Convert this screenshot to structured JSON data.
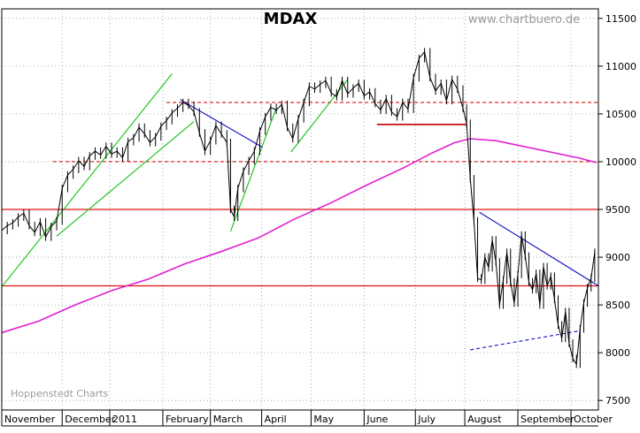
{
  "chart_data": {
    "type": "line",
    "title": "MDAX",
    "watermark": "www.chartbuero.de",
    "source": "Hoppenstedt Charts",
    "xlabel": "",
    "ylabel": "",
    "ylim": [
      7400,
      11600
    ],
    "y_ticks": [
      7500,
      8000,
      8500,
      9000,
      9500,
      10000,
      10500,
      11000,
      11500
    ],
    "x_ticks": [
      "November",
      "December",
      "2011",
      "February",
      "March",
      "April",
      "May",
      "June",
      "July",
      "August",
      "September",
      "October"
    ],
    "grid": true,
    "price_points": [
      [
        0,
        9280
      ],
      [
        6,
        9330
      ],
      [
        12,
        9360
      ],
      [
        18,
        9420
      ],
      [
        24,
        9460
      ],
      [
        30,
        9330
      ],
      [
        36,
        9260
      ],
      [
        42,
        9370
      ],
      [
        48,
        9210
      ],
      [
        54,
        9320
      ],
      [
        60,
        9380
      ],
      [
        66,
        9720
      ],
      [
        72,
        9860
      ],
      [
        78,
        9920
      ],
      [
        84,
        10010
      ],
      [
        90,
        9950
      ],
      [
        96,
        10060
      ],
      [
        102,
        10110
      ],
      [
        108,
        10070
      ],
      [
        114,
        10160
      ],
      [
        120,
        10080
      ],
      [
        126,
        10110
      ],
      [
        132,
        10040
      ],
      [
        138,
        10210
      ],
      [
        144,
        10250
      ],
      [
        150,
        10360
      ],
      [
        156,
        10290
      ],
      [
        162,
        10200
      ],
      [
        168,
        10260
      ],
      [
        174,
        10370
      ],
      [
        180,
        10430
      ],
      [
        186,
        10510
      ],
      [
        192,
        10560
      ],
      [
        198,
        10620
      ],
      [
        204,
        10590
      ],
      [
        210,
        10520
      ],
      [
        216,
        10300
      ],
      [
        222,
        10110
      ],
      [
        228,
        10220
      ],
      [
        234,
        10380
      ],
      [
        240,
        10290
      ],
      [
        246,
        10200
      ],
      [
        250,
        9500
      ],
      [
        254,
        9420
      ],
      [
        258,
        9720
      ],
      [
        264,
        9900
      ],
      [
        270,
        10010
      ],
      [
        276,
        10110
      ],
      [
        282,
        10320
      ],
      [
        288,
        10470
      ],
      [
        294,
        10570
      ],
      [
        300,
        10540
      ],
      [
        306,
        10600
      ],
      [
        312,
        10360
      ],
      [
        318,
        10240
      ],
      [
        324,
        10450
      ],
      [
        330,
        10620
      ],
      [
        336,
        10790
      ],
      [
        342,
        10760
      ],
      [
        348,
        10810
      ],
      [
        354,
        10850
      ],
      [
        360,
        10720
      ],
      [
        366,
        10680
      ],
      [
        372,
        10850
      ],
      [
        378,
        10710
      ],
      [
        384,
        10770
      ],
      [
        390,
        10820
      ],
      [
        396,
        10690
      ],
      [
        402,
        10730
      ],
      [
        408,
        10610
      ],
      [
        414,
        10540
      ],
      [
        420,
        10660
      ],
      [
        426,
        10520
      ],
      [
        432,
        10470
      ],
      [
        438,
        10620
      ],
      [
        444,
        10550
      ],
      [
        450,
        10880
      ],
      [
        456,
        11080
      ],
      [
        462,
        11150
      ],
      [
        468,
        10880
      ],
      [
        474,
        10740
      ],
      [
        480,
        10820
      ],
      [
        486,
        10640
      ],
      [
        492,
        10860
      ],
      [
        498,
        10760
      ],
      [
        504,
        10560
      ],
      [
        508,
        10400
      ],
      [
        512,
        9820
      ],
      [
        516,
        9380
      ],
      [
        520,
        8780
      ],
      [
        524,
        8760
      ],
      [
        528,
        9000
      ],
      [
        532,
        8890
      ],
      [
        536,
        9180
      ],
      [
        540,
        8950
      ],
      [
        544,
        8500
      ],
      [
        548,
        8760
      ],
      [
        552,
        9050
      ],
      [
        556,
        8740
      ],
      [
        560,
        8520
      ],
      [
        564,
        8820
      ],
      [
        568,
        9230
      ],
      [
        572,
        9010
      ],
      [
        576,
        8740
      ],
      [
        580,
        8660
      ],
      [
        584,
        8830
      ],
      [
        588,
        8500
      ],
      [
        592,
        8900
      ],
      [
        596,
        8700
      ],
      [
        600,
        8800
      ],
      [
        604,
        8560
      ],
      [
        608,
        8290
      ],
      [
        612,
        8150
      ],
      [
        616,
        8430
      ],
      [
        620,
        8100
      ],
      [
        624,
        7940
      ],
      [
        628,
        7880
      ],
      [
        632,
        8250
      ],
      [
        636,
        8520
      ],
      [
        640,
        8680
      ],
      [
        644,
        8780
      ],
      [
        648,
        9050
      ]
    ],
    "moving_average_points": [
      [
        0,
        8210
      ],
      [
        40,
        8330
      ],
      [
        80,
        8500
      ],
      [
        120,
        8650
      ],
      [
        160,
        8770
      ],
      [
        200,
        8930
      ],
      [
        240,
        9060
      ],
      [
        280,
        9200
      ],
      [
        320,
        9400
      ],
      [
        360,
        9570
      ],
      [
        400,
        9760
      ],
      [
        440,
        9940
      ],
      [
        470,
        10090
      ],
      [
        495,
        10200
      ],
      [
        512,
        10240
      ],
      [
        540,
        10220
      ],
      [
        570,
        10160
      ],
      [
        600,
        10100
      ],
      [
        630,
        10040
      ],
      [
        650,
        9990
      ]
    ],
    "horizontal_lines_solid": [
      9500,
      8700
    ],
    "horizontal_lines_dashed": [
      10620,
      10000
    ],
    "support_line": {
      "x1": 410,
      "x2": 508,
      "y": 10390
    },
    "trend_channels": [
      {
        "points": [
          [
            0,
            8690
          ],
          [
            186,
            10920
          ]
        ]
      },
      {
        "points": [
          [
            60,
            9220
          ],
          [
            210,
            10420
          ]
        ]
      },
      {
        "points": [
          [
            250,
            9270
          ],
          [
            300,
            10560
          ]
        ]
      },
      {
        "points": [
          [
            316,
            10100
          ],
          [
            378,
            10860
          ]
        ]
      }
    ],
    "downtrend_lines": [
      {
        "points": [
          [
            195,
            10650
          ],
          [
            285,
            10150
          ]
        ]
      },
      {
        "points": [
          [
            522,
            9470
          ],
          [
            652,
            8700
          ]
        ]
      }
    ],
    "dashed_support_line": {
      "points": [
        [
          512,
          8030
        ],
        [
          632,
          8230
        ]
      ]
    },
    "colors": {
      "price": "#000000",
      "moving_average": "#e020d0",
      "horizontal_line": "#e01010",
      "trend_green": "#10c010",
      "trend_blue": "#1010c0",
      "grid": "#8aa0a0",
      "support": "#c00000"
    }
  }
}
